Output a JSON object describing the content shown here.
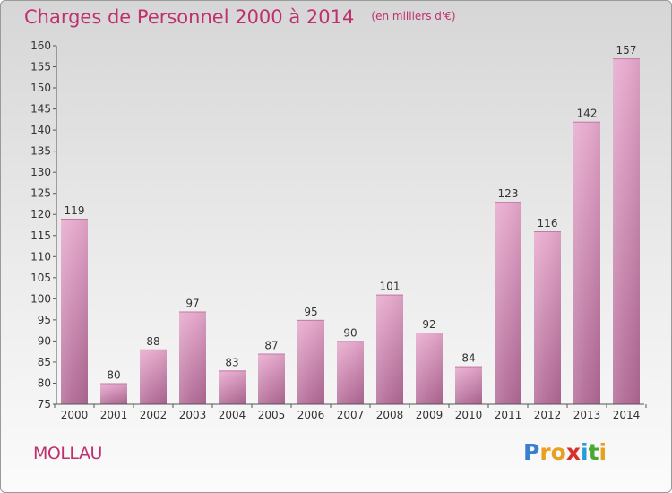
{
  "title": "Charges de Personnel 2000 à 2014",
  "subtitle": "(en milliers d'€)",
  "commune": "MOLLAU",
  "logo": {
    "text": "Proxiti",
    "letter_colors": [
      "#3a7fcf",
      "#e8a020",
      "#e8a020",
      "#d9302c",
      "#2a9bd8",
      "#4aa832",
      "#e8a020"
    ]
  },
  "colors": {
    "title": "#c03070",
    "bar_light": "#e6a8cc",
    "bar_dark": "#b06894",
    "axis": "#555555"
  },
  "chart_data": {
    "type": "bar",
    "title": "Charges de Personnel 2000 à 2014",
    "subtitle": "(en milliers d'€)",
    "categories": [
      "2000",
      "2001",
      "2002",
      "2003",
      "2004",
      "2005",
      "2006",
      "2007",
      "2008",
      "2009",
      "2010",
      "2011",
      "2012",
      "2013",
      "2014"
    ],
    "values": [
      119,
      80,
      88,
      97,
      83,
      87,
      95,
      90,
      101,
      92,
      84,
      123,
      116,
      142,
      157
    ],
    "ylim": [
      75,
      160
    ],
    "yticks": [
      75,
      80,
      85,
      90,
      95,
      100,
      105,
      110,
      115,
      120,
      125,
      130,
      135,
      140,
      145,
      150,
      155,
      160
    ],
    "grid": false,
    "xlabel": "",
    "ylabel": ""
  }
}
